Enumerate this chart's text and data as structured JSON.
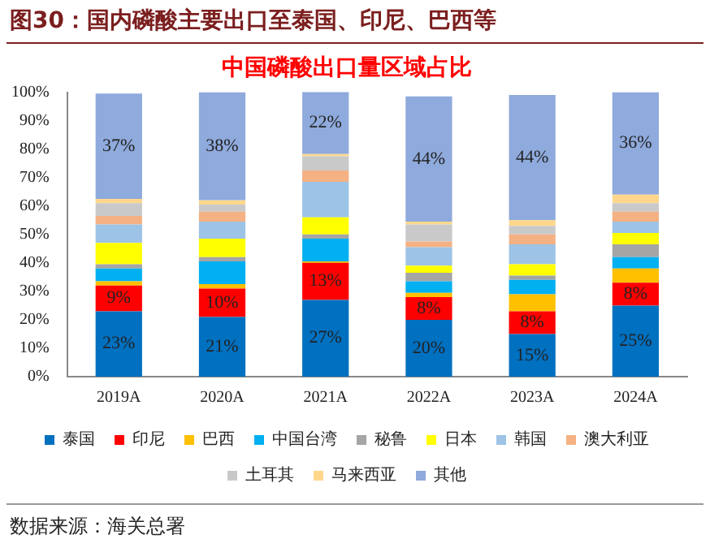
{
  "chart_data": {
    "type": "bar",
    "stacked": true,
    "title": "中国磷酸出口量区域占比",
    "subtitle": "图30：国内磷酸主要出口至泰国、印尼、巴西等",
    "annotations": [
      "数据来源：海关总署"
    ],
    "categories": [
      "2019A",
      "2020A",
      "2021A",
      "2022A",
      "2023A",
      "2024A"
    ],
    "ylim": [
      0,
      100
    ],
    "yticks": [
      {
        "value": 0,
        "label": "0%"
      },
      {
        "value": 10,
        "label": "10%"
      },
      {
        "value": 20,
        "label": "20%"
      },
      {
        "value": 30,
        "label": "30%"
      },
      {
        "value": 40,
        "label": "40%"
      },
      {
        "value": 50,
        "label": "50%"
      },
      {
        "value": 60,
        "label": "60%"
      },
      {
        "value": 70,
        "label": "70%"
      },
      {
        "value": 80,
        "label": "80%"
      },
      {
        "value": 90,
        "label": "90%"
      },
      {
        "value": 100,
        "label": "100%"
      }
    ],
    "grid": false,
    "legend": "bottom",
    "series": [
      {
        "name": "泰国",
        "color": "#0070c0",
        "values": [
          23,
          21,
          27,
          20,
          15,
          25
        ],
        "value_labels": [
          "23%",
          "21%",
          "27%",
          "20%",
          "15%",
          "25%"
        ]
      },
      {
        "name": "印尼",
        "color": "#ff0000",
        "values": [
          9,
          10,
          13,
          8,
          8,
          8
        ],
        "value_labels": [
          "9%",
          "10%",
          "13%",
          "8%",
          "8%",
          "8%"
        ]
      },
      {
        "name": "巴西",
        "color": "#ffc000",
        "values": [
          1.5,
          1.5,
          0.5,
          1.5,
          6,
          5
        ]
      },
      {
        "name": "中国台湾",
        "color": "#00b0f0",
        "values": [
          4.5,
          8,
          8,
          4,
          5,
          4
        ]
      },
      {
        "name": "秘鲁",
        "color": "#a5a5a5",
        "values": [
          1.5,
          1.5,
          1.5,
          3,
          1.5,
          4.5
        ]
      },
      {
        "name": "日本",
        "color": "#ffff00",
        "values": [
          7.5,
          6.5,
          6,
          2.5,
          4,
          4
        ]
      },
      {
        "name": "韩国",
        "color": "#9dc3e6",
        "values": [
          6.5,
          6,
          12.5,
          6.5,
          7,
          4
        ]
      },
      {
        "name": "澳大利亚",
        "color": "#f4b183",
        "values": [
          3,
          3.5,
          4,
          2,
          3.5,
          3.5
        ]
      },
      {
        "name": "土耳其",
        "color": "#c9c9c9",
        "values": [
          4.5,
          2.5,
          5,
          6,
          3,
          3
        ]
      },
      {
        "name": "马来西亚",
        "color": "#ffd78c",
        "values": [
          1.5,
          1.5,
          0.8,
          1,
          2,
          3
        ]
      },
      {
        "name": "其他",
        "color": "#8faadc",
        "values": [
          37,
          38,
          22,
          44,
          44,
          36
        ],
        "value_labels": [
          "37%",
          "38%",
          "22%",
          "44%",
          "44%",
          "36%"
        ]
      }
    ]
  }
}
